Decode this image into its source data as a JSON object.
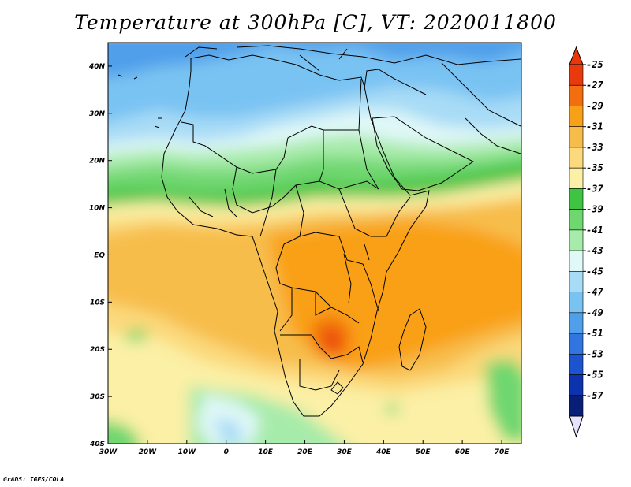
{
  "title": "Temperature at 300hPa [C], VT: 2020011800",
  "credit": "GrADS: IGES/COLA",
  "map": {
    "lon_range": [
      -30,
      75
    ],
    "lat_range": [
      -40,
      45
    ],
    "lon_ticks": [
      {
        "value": -30,
        "label": "30W"
      },
      {
        "value": -20,
        "label": "20W"
      },
      {
        "value": -10,
        "label": "10W"
      },
      {
        "value": 0,
        "label": "0"
      },
      {
        "value": 10,
        "label": "10E"
      },
      {
        "value": 20,
        "label": "20E"
      },
      {
        "value": 30,
        "label": "30E"
      },
      {
        "value": 40,
        "label": "40E"
      },
      {
        "value": 50,
        "label": "50E"
      },
      {
        "value": 60,
        "label": "60E"
      },
      {
        "value": 70,
        "label": "70E"
      }
    ],
    "lat_ticks": [
      {
        "value": 40,
        "label": "40N"
      },
      {
        "value": 30,
        "label": "30N"
      },
      {
        "value": 20,
        "label": "20N"
      },
      {
        "value": 10,
        "label": "10N"
      },
      {
        "value": 0,
        "label": "EQ"
      },
      {
        "value": -10,
        "label": "10S"
      },
      {
        "value": -20,
        "label": "20S"
      },
      {
        "value": -30,
        "label": "30S"
      },
      {
        "value": -40,
        "label": "40S"
      }
    ]
  },
  "colorbar": {
    "labels": [
      "-25",
      "-27",
      "-29",
      "-31",
      "-33",
      "-35",
      "-37",
      "-39",
      "-41",
      "-43",
      "-45",
      "-47",
      "-49",
      "-51",
      "-53",
      "-55",
      "-57"
    ],
    "colors": [
      "#e83a0c",
      "#f36e0e",
      "#f9a019",
      "#f7bd4b",
      "#fbd97c",
      "#fbf0a6",
      "#40c340",
      "#6fd76f",
      "#a7ebaa",
      "#e0f8f8",
      "#a8dcf6",
      "#79c3f3",
      "#4f9fea",
      "#3175e0",
      "#1c54cf",
      "#0d32ad",
      "#081e77"
    ],
    "top_tip_color": "#e8370a",
    "bottom_tip_color": "#e6e2ff"
  }
}
